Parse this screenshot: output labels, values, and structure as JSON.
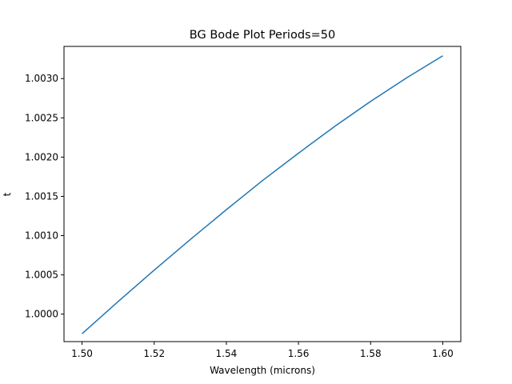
{
  "chart_data": {
    "type": "line",
    "title": "BG Bode Plot Periods=50",
    "xlabel": "Wavelength (microns)",
    "ylabel": "t",
    "xlim": [
      1.495,
      1.605
    ],
    "ylim": [
      0.99965,
      1.00341
    ],
    "x_ticks": [
      1.5,
      1.52,
      1.54,
      1.56,
      1.58,
      1.6
    ],
    "x_tick_labels": [
      "1.50",
      "1.52",
      "1.54",
      "1.56",
      "1.58",
      "1.60"
    ],
    "y_ticks": [
      1.0,
      1.0005,
      1.001,
      1.0015,
      1.002,
      1.0025,
      1.003
    ],
    "y_tick_labels": [
      "1.0000",
      "1.0005",
      "1.0010",
      "1.0015",
      "1.0020",
      "1.0025",
      "1.0030"
    ],
    "grid": false,
    "series": [
      {
        "color": "#1f77b4",
        "x": [
          1.5,
          1.51,
          1.52,
          1.53,
          1.54,
          1.55,
          1.56,
          1.57,
          1.58,
          1.59,
          1.6
        ],
        "y": [
          0.99975,
          1.00016,
          1.00056,
          1.00095,
          1.00133,
          1.0017,
          1.00205,
          1.00239,
          1.00271,
          1.00301,
          1.00329
        ]
      }
    ]
  }
}
